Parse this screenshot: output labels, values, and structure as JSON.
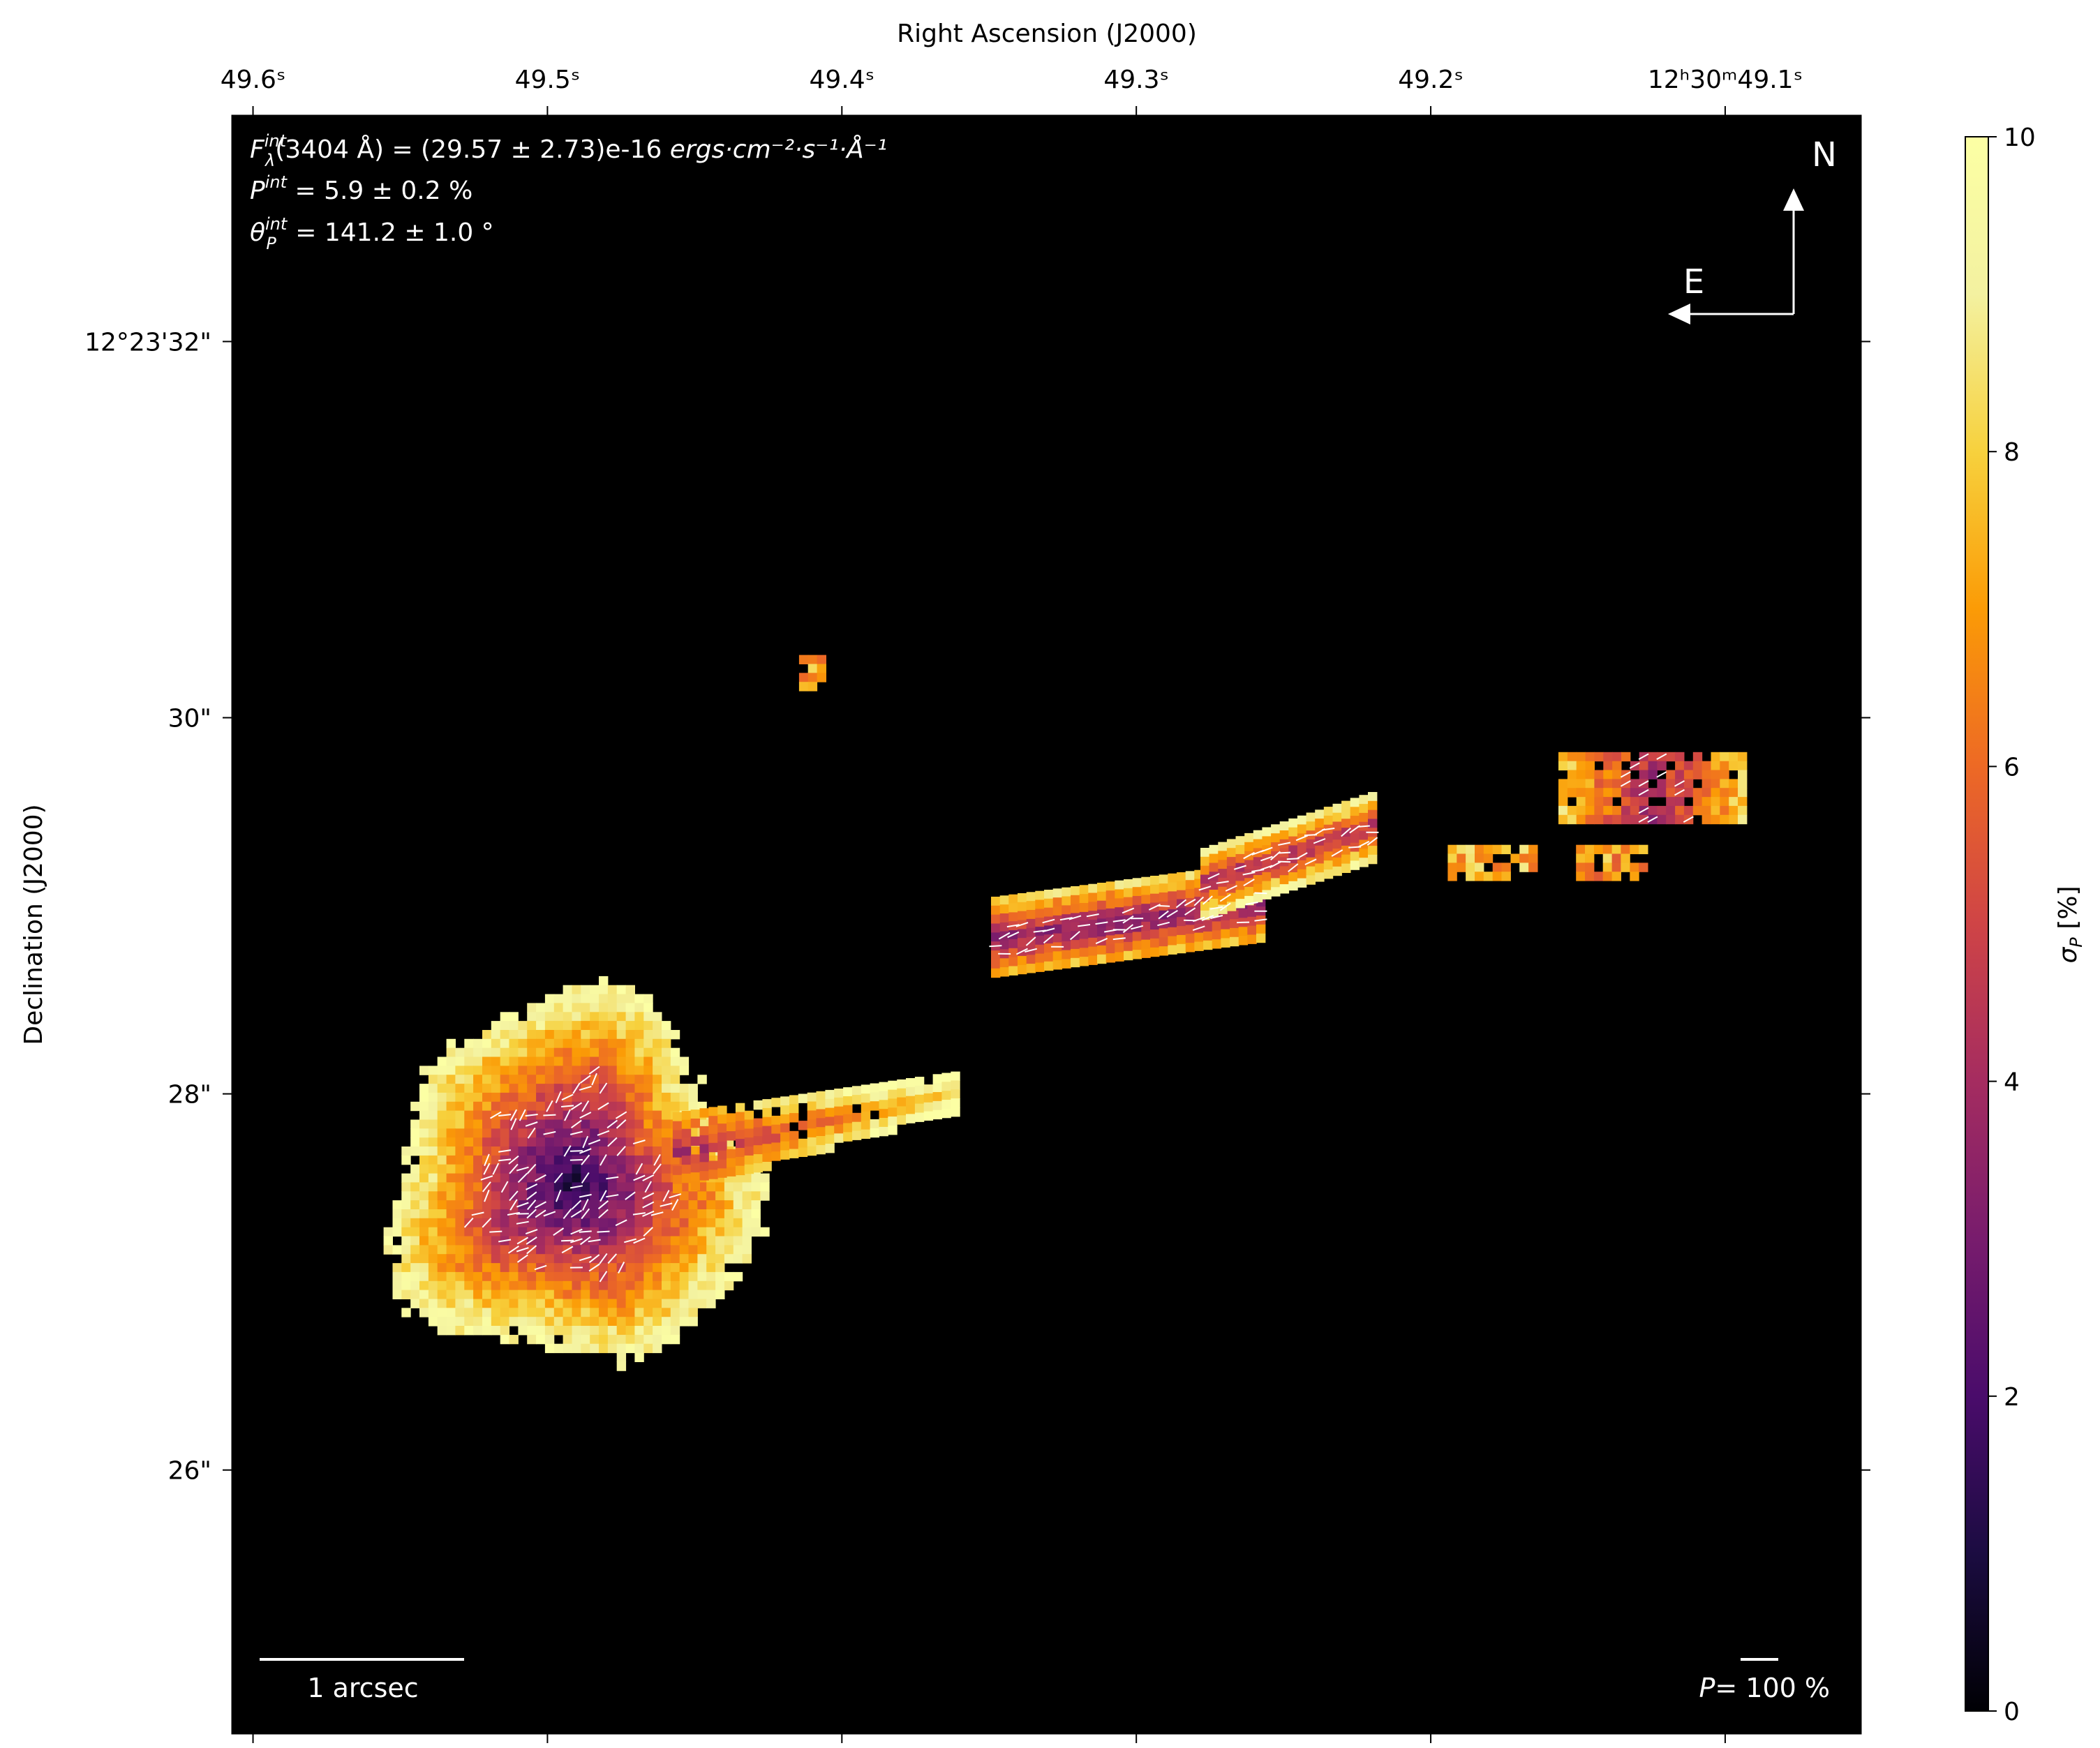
{
  "chart_data": {
    "type": "heatmap",
    "title": "",
    "xlabel": "Right Ascension (J2000)",
    "ylabel": "Declination (J2000)",
    "x_ticks": [
      {
        "ra": 49.6,
        "label": "49.6ˢ"
      },
      {
        "ra": 49.5,
        "label": "49.5ˢ"
      },
      {
        "ra": 49.4,
        "label": "49.4ˢ"
      },
      {
        "ra": 49.3,
        "label": "49.3ˢ"
      },
      {
        "ra": 49.2,
        "label": "49.2ˢ"
      },
      {
        "ra": 49.1,
        "label": "12ʰ30ᵐ49.1ˢ"
      }
    ],
    "xlim": [
      49.607,
      49.054
    ],
    "y_ticks": [
      {
        "dec": 32,
        "label": "12°23'32\""
      },
      {
        "dec": 30,
        "label": "30\""
      },
      {
        "dec": 28,
        "label": "28\""
      },
      {
        "dec": 26,
        "label": "26\""
      }
    ],
    "ylim": [
      24.6,
      33.2
    ],
    "colorbar": {
      "label": "σ_P [%]",
      "min": 0,
      "max": 10,
      "ticks": [
        0,
        2,
        4,
        6,
        8,
        10
      ],
      "colormap": "inferno"
    },
    "annotations": {
      "flux_text": "(3404 Å) = (29.57 ± 2.73)e-16 ",
      "flux_units": "ergs·cm⁻²·s⁻¹·Å⁻¹",
      "pol_text": " = 5.9 ± 0.2 %",
      "angle_text": " = 141.2 ± 1.0 °",
      "compass_n": "N",
      "compass_e": "E",
      "scalebar_label": "1 arcsec",
      "pol_scale_label": "= 100 %"
    },
    "regions": [
      {
        "name": "main-galaxy-core",
        "ra": 49.493,
        "dec": 27.55,
        "size_arcsec": 2.0,
        "sigma_center": 1.0
      },
      {
        "name": "jet-segment-1",
        "ra": 49.31,
        "dec": 28.55,
        "sigma_center": 3.2
      },
      {
        "name": "jet-segment-2",
        "ra": 49.245,
        "dec": 28.95,
        "sigma_center": 4.0
      },
      {
        "name": "knot-a",
        "ra": 49.18,
        "dec": 29.25,
        "sigma_center": 7.5
      },
      {
        "name": "knot-b",
        "ra": 49.14,
        "dec": 29.25,
        "sigma_center": 7.0
      },
      {
        "name": "outer-knot",
        "ra": 49.095,
        "dec": 29.65,
        "sigma_center": 4.0
      },
      {
        "name": "isolated-blob",
        "ra": 49.411,
        "dec": 30.25,
        "sigma_center": 7.0
      }
    ]
  }
}
